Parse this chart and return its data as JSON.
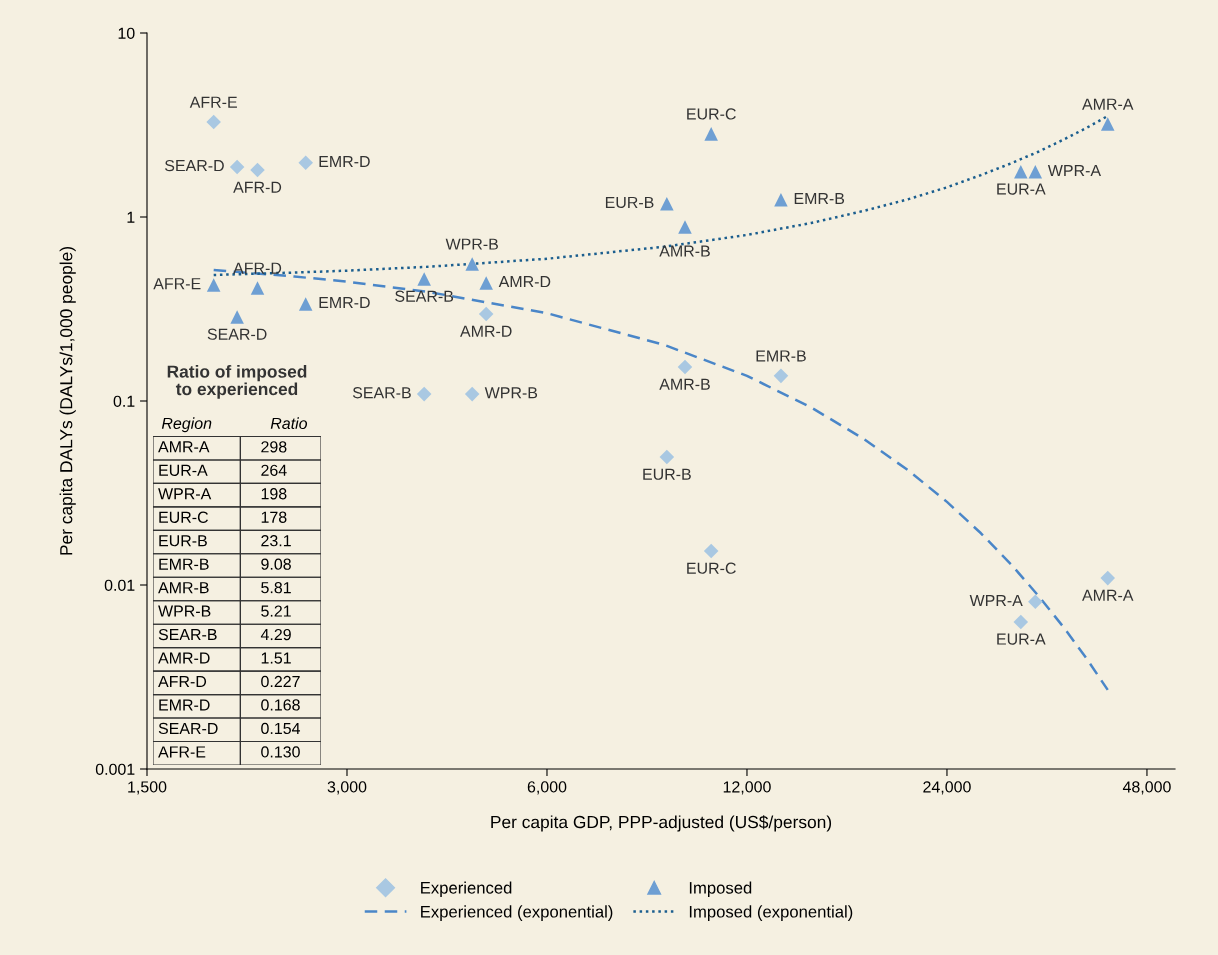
{
  "chart_data": [
    {
      "type": "scatter",
      "xlabel": "Per capita GDP, PPP-adjusted (US$/person)",
      "ylabel": "Per capita DALYs (DALYs/1,000 people)",
      "log": "xy",
      "xlim": [
        1500,
        52900
      ],
      "ylim": [
        0.001,
        10
      ],
      "xticks": [
        {
          "value": 1500,
          "label": "1,500"
        },
        {
          "value": 3000,
          "label": "3,000"
        },
        {
          "value": 6000,
          "label": "6,000"
        },
        {
          "value": 12000,
          "label": "12,000"
        },
        {
          "value": 24000,
          "label": "24,000"
        },
        {
          "value": 48000,
          "label": "48,000"
        }
      ],
      "yticks": [
        0.001,
        0.01,
        0.1,
        1,
        10
      ],
      "grid": false,
      "legend": "bottom",
      "series": [
        {
          "name": "Experienced",
          "type": "scatter",
          "marker": "diamond",
          "color": "#a9c8e2",
          "x": [
            1890,
            2050,
            2200,
            2600,
            3920,
            4630,
            4860,
            9680,
            9090,
            10600,
            13500,
            32600,
            31000,
            41900
          ],
          "values": [
            3.28,
            1.87,
            1.8,
            1.97,
            0.109,
            0.109,
            0.297,
            0.153,
            0.0496,
            0.0153,
            0.137,
            0.0081,
            0.0063,
            0.0109
          ]
        },
        {
          "name": "Imposed",
          "type": "scatter",
          "marker": "triangle",
          "color": "#6e9fd3",
          "x": [
            1890,
            2050,
            2200,
            2600,
            3920,
            4630,
            4860,
            9680,
            9090,
            10600,
            13500,
            31000,
            32600,
            41900
          ],
          "values": [
            0.427,
            0.286,
            0.411,
            0.337,
            0.46,
            0.555,
            0.438,
            0.883,
            1.18,
            2.83,
            1.24,
            1.76,
            1.76,
            3.2
          ]
        },
        {
          "name": "Experienced (exponential)",
          "type": "line",
          "line_style": "dashed",
          "marker": "none",
          "color": "#4a86c8",
          "x": [
            1890,
            2500,
            3000,
            4000,
            6000,
            9000,
            12000,
            15000,
            18000,
            21000,
            24000,
            27000,
            30000,
            33000,
            36000,
            39000,
            41900
          ],
          "values": [
            0.515,
            0.475,
            0.445,
            0.39,
            0.3,
            0.202,
            0.137,
            0.0921,
            0.0621,
            0.0419,
            0.0283,
            0.0191,
            0.0129,
            0.00868,
            0.00586,
            0.00395,
            0.00269
          ]
        },
        {
          "name": "Imposed (exponential)",
          "type": "line",
          "line_style": "dotted",
          "marker": "none",
          "color": "#1b5e8e",
          "x": [
            1890,
            2500,
            3000,
            4000,
            6000,
            9000,
            12000,
            15000,
            18000,
            21000,
            24000,
            27000,
            30000,
            33000,
            36000,
            39000,
            41900
          ],
          "values": [
            0.484,
            0.499,
            0.511,
            0.537,
            0.593,
            0.689,
            0.799,
            0.928,
            1.08,
            1.25,
            1.45,
            1.69,
            1.96,
            2.27,
            2.64,
            3.06,
            3.54
          ]
        }
      ],
      "annotations": [
        {
          "text": "AFR-E",
          "x": 1890,
          "y": 3.28
        },
        {
          "text": "SEAR-D",
          "x": 2050,
          "y": 1.87
        },
        {
          "text": "AFR-D",
          "x": 2200,
          "y": 1.8
        },
        {
          "text": "EMR-D",
          "x": 2600,
          "y": 1.97
        },
        {
          "text": "SEAR-B",
          "x": 3920,
          "y": 0.109
        },
        {
          "text": "WPR-B",
          "x": 4630,
          "y": 0.109
        },
        {
          "text": "AMR-D",
          "x": 4860,
          "y": 0.297
        },
        {
          "text": "AMR-B",
          "x": 9680,
          "y": 0.153
        },
        {
          "text": "EUR-B",
          "x": 9090,
          "y": 0.0496
        },
        {
          "text": "EUR-C",
          "x": 10600,
          "y": 0.0153
        },
        {
          "text": "EMR-B",
          "x": 13500,
          "y": 0.137
        },
        {
          "text": "WPR-A",
          "x": 32600,
          "y": 0.0081
        },
        {
          "text": "EUR-A",
          "x": 31000,
          "y": 0.0063
        },
        {
          "text": "AMR-A",
          "x": 41900,
          "y": 0.0109
        },
        {
          "text": "AFR-E",
          "x": 1890,
          "y": 0.427
        },
        {
          "text": "SEAR-D",
          "x": 2050,
          "y": 0.286
        },
        {
          "text": "AFR-D",
          "x": 2200,
          "y": 0.411
        },
        {
          "text": "EMR-D",
          "x": 2600,
          "y": 0.337
        },
        {
          "text": "SEAR-B",
          "x": 3920,
          "y": 0.46
        },
        {
          "text": "WPR-B",
          "x": 4630,
          "y": 0.555
        },
        {
          "text": "AMR-D",
          "x": 4860,
          "y": 0.438
        },
        {
          "text": "AMR-B",
          "x": 9680,
          "y": 0.883
        },
        {
          "text": "EUR-B",
          "x": 9090,
          "y": 1.18
        },
        {
          "text": "EUR-C",
          "x": 10600,
          "y": 2.83
        },
        {
          "text": "EMR-B",
          "x": 13500,
          "y": 1.24
        },
        {
          "text": "EUR-A",
          "x": 31000,
          "y": 1.76
        },
        {
          "text": "WPR-A",
          "x": 32600,
          "y": 1.76
        },
        {
          "text": "AMR-A",
          "x": 41900,
          "y": 3.2
        }
      ]
    },
    {
      "type": "other",
      "title": "Ratio of imposed to experienced",
      "xlabel": "Region",
      "ylabel": "Ratio",
      "categories": [
        "AMR-A",
        "EUR-A",
        "WPR-A",
        "EUR-C",
        "EUR-B",
        "EMR-B",
        "AMR-B",
        "WPR-B",
        "SEAR-B",
        "AMR-D",
        "AFR-D",
        "EMR-D",
        "SEAR-D",
        "AFR-E"
      ],
      "value_labels": [
        "298",
        "264",
        "198",
        "178",
        "23.1",
        "9.08",
        "5.81",
        "5.21",
        "4.29",
        "1.51",
        "0.227",
        "0.168",
        "0.154",
        "0.130"
      ]
    }
  ]
}
